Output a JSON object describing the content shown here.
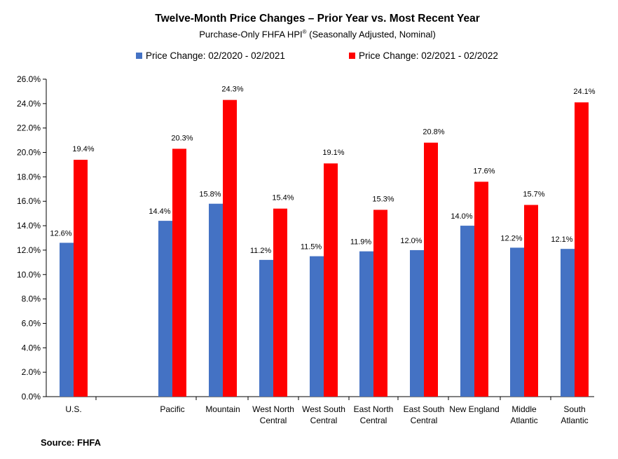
{
  "chart_data": {
    "type": "bar",
    "title": "Twelve-Month Price Changes – Prior Year vs. Most Recent Year",
    "subtitle_main": "Purchase-Only FHFA HPI",
    "subtitle_mark": "®",
    "subtitle_rest": " (Seasonally Adjusted, Nominal)",
    "categories": [
      [
        "U.S."
      ],
      [
        "Pacific"
      ],
      [
        "Mountain"
      ],
      [
        "West North",
        "Central"
      ],
      [
        "West South",
        "Central"
      ],
      [
        "East North",
        "Central"
      ],
      [
        "East South",
        "Central"
      ],
      [
        "New England"
      ],
      [
        "Middle",
        "Atlantic"
      ],
      [
        "South",
        "Atlantic"
      ]
    ],
    "series": [
      {
        "name": "Price Change:  02/2020 - 02/2021",
        "color": "#4472C4",
        "values": [
          12.6,
          14.4,
          15.8,
          11.2,
          11.5,
          11.9,
          12.0,
          14.0,
          12.2,
          12.1
        ],
        "labels": [
          "12.6%",
          "14.4%",
          "15.8%",
          "11.2%",
          "11.5%",
          "11.9%",
          "12.0%",
          "14.0%",
          "12.2%",
          "12.1%"
        ]
      },
      {
        "name": "Price Change:  02/2021 - 02/2022",
        "color": "#FF0000",
        "values": [
          19.4,
          20.3,
          24.3,
          15.4,
          19.1,
          15.3,
          20.8,
          17.6,
          15.7,
          24.1
        ],
        "labels": [
          "19.4%",
          "20.3%",
          "24.3%",
          "15.4%",
          "19.1%",
          "15.3%",
          "20.8%",
          "17.6%",
          "15.7%",
          "24.1%"
        ]
      }
    ],
    "y_ticks": [
      "0.0%",
      "2.0%",
      "4.0%",
      "6.0%",
      "8.0%",
      "10.0%",
      "12.0%",
      "14.0%",
      "16.0%",
      "18.0%",
      "20.0%",
      "22.0%",
      "24.0%",
      "26.0%"
    ],
    "ylim": [
      0,
      26
    ],
    "legend_position": "top",
    "grid": false,
    "source": "Source: FHFA"
  }
}
